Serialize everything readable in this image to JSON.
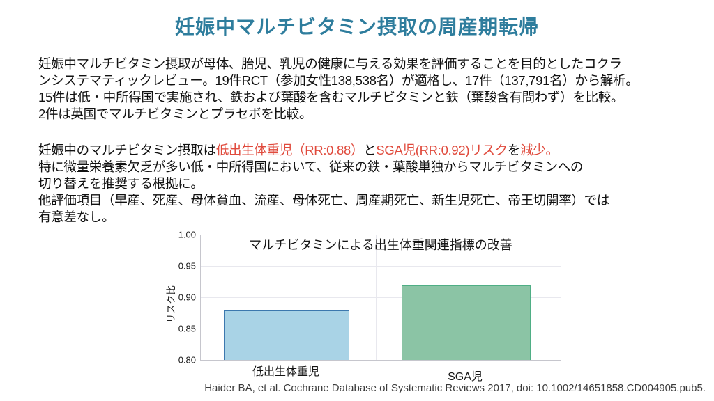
{
  "slide_title": "妊娠中マルチビタミン摂取の周産期転帰",
  "colors": {
    "title": "#2e7d9d",
    "highlight_red": "#e04a3c",
    "body_text": "#111111"
  },
  "paragraph1": {
    "line1": "妊娠中マルチビタミン摂取が母体、胎児、乳児の健康に与える効果を評価することを目的としたコクラ",
    "line2": "ンシステマティックレビュー。19件RCT（参加女性138,538名）が適格し、17件（137,791名）から解析。",
    "line3": "15件は低・中所得国で実施され、鉄および葉酸を含むマルチビタミンと鉄（葉酸含有問わず）を比較。",
    "line4": "2件は英国でマルチビタミンとプラセボを比較。"
  },
  "paragraph2": {
    "line1_segments": {
      "s1": "妊娠中のマルチビタミン摂取は",
      "s2_red": "低出生体重児（RR:0.88）",
      "s3": "と",
      "s4_red": "SGA児(RR:0.92)リスク",
      "s5": "を",
      "s6_red": "減少。"
    },
    "line2": "特に微量栄養素欠乏が多い低・中所得国において、従来の鉄・葉酸単独からマルチビタミンへの",
    "line3": "切り替えを推奨する根拠に。",
    "line4": "他評価項目（早産、死産、母体貧血、流産、母体死亡、周産期死亡、新生児死亡、帝王切開率）では",
    "line5": "有意差なし。"
  },
  "chart_data": {
    "type": "bar",
    "title": "マルチビタミンによる出生体重関連指標の改善",
    "xlabel": "",
    "ylabel": "リスク比",
    "categories": [
      "低出生体重児",
      "SGA児"
    ],
    "values": [
      0.88,
      0.92
    ],
    "ylim": [
      0.8,
      1.0
    ],
    "yticks": [
      0.8,
      0.85,
      0.9,
      0.95,
      1.0
    ],
    "bar_colors": [
      "#a9d3e6",
      "#8bc4a5"
    ],
    "bar_border_colors": [
      "#3c78ae",
      "#4fae85"
    ],
    "grid": true,
    "legend_position": "none"
  },
  "citation": "Haider BA, et al. Cochrane Database of Systematic Reviews 2017, doi: 10.1002/14651858.CD004905.pub5."
}
